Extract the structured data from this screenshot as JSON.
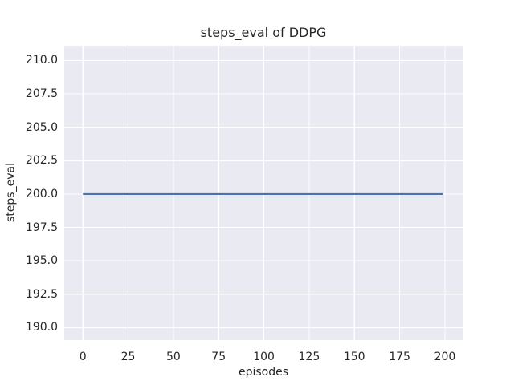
{
  "chart_data": {
    "type": "line",
    "title": "steps_eval of DDPG",
    "xlabel": "episodes",
    "ylabel": "steps_eval",
    "xlim": [
      -10.3,
      209.8
    ],
    "ylim": [
      189.06,
      211.11
    ],
    "xticks": {
      "values": [
        0,
        25,
        50,
        75,
        100,
        125,
        150,
        175,
        200
      ],
      "labels": [
        "0",
        "25",
        "50",
        "75",
        "100",
        "125",
        "150",
        "175",
        "200"
      ]
    },
    "yticks": {
      "values": [
        190,
        192.5,
        195,
        197.5,
        200,
        202.5,
        205,
        207.5,
        210
      ],
      "labels": [
        "190.0",
        "192.5",
        "195.0",
        "197.5",
        "200.0",
        "202.5",
        "205.0",
        "207.5",
        "210.0"
      ]
    },
    "grid": true,
    "legend": false,
    "series": [
      {
        "name": "DDPG",
        "color": "#4c72b0",
        "line_width": 2.2,
        "points": [
          [
            0,
            200
          ],
          [
            199,
            200
          ]
        ]
      }
    ],
    "style": {
      "figure_background": "#ffffff",
      "axes_background": "#eaeaf2",
      "grid_color": "#ffffff",
      "text_color": "#262626"
    }
  }
}
